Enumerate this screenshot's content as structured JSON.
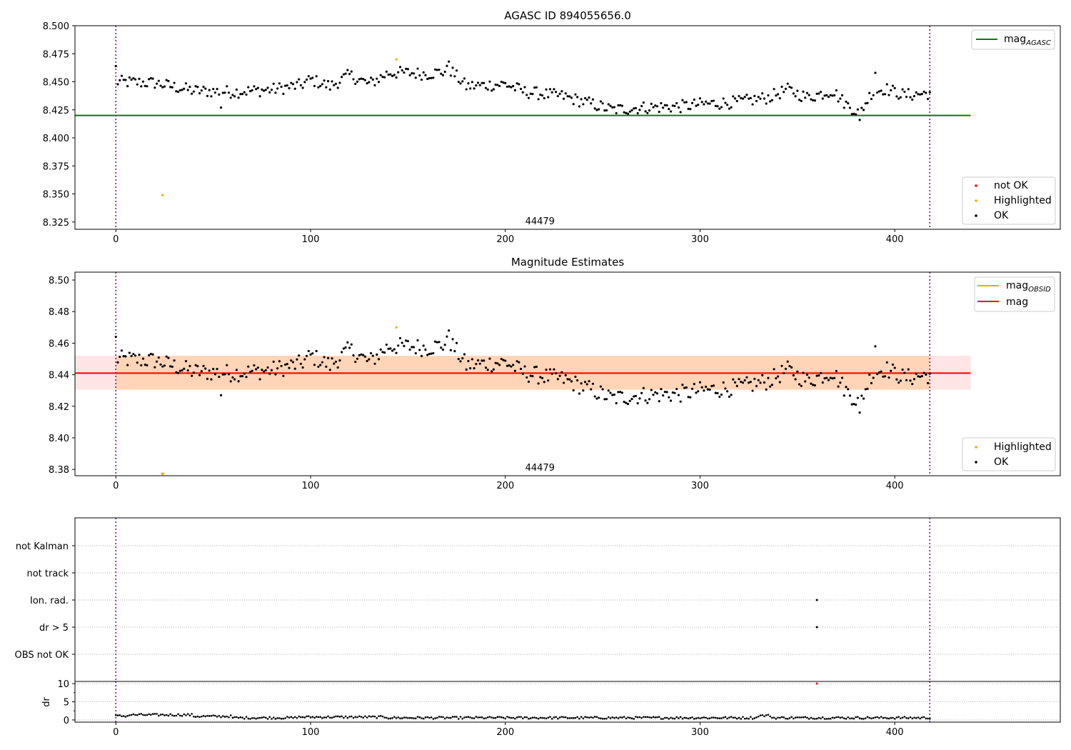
{
  "chart_data": [
    {
      "type": "scatter",
      "title": "AGASC ID 894055656.0",
      "xlabel": "",
      "ylabel": "",
      "xlim": [
        -21,
        485
      ],
      "ylim": [
        8.3185,
        8.5
      ],
      "xticks": [
        0,
        100,
        200,
        300,
        400
      ],
      "yticks": [
        8.325,
        8.35,
        8.375,
        8.4,
        8.425,
        8.45,
        8.475,
        8.5
      ],
      "ytick_labels": [
        "8.325",
        "8.350",
        "8.375",
        "8.400",
        "8.425",
        "8.450",
        "8.475",
        "8.500"
      ],
      "grid": false,
      "obsid_boundaries": [
        0,
        418
      ],
      "obsid_label": {
        "text": "44479",
        "x": 209,
        "y": 8.323
      },
      "hlines": [
        {
          "name": "mag_AGASC",
          "y": 8.42,
          "x": [
            -21,
            439
          ],
          "color": "#008000"
        }
      ],
      "series": [
        {
          "name": "not OK",
          "color": "#ff0000",
          "points": []
        },
        {
          "name": "Highlighted",
          "color": "#ffa500",
          "points": [
            [
              24,
              8.349
            ],
            [
              144,
              8.47
            ]
          ]
        },
        {
          "name": "OK",
          "color": "#000000",
          "points": "generated: ~419 points at x=0..418, y≈8.42–8.468 following the plotted trend"
        }
      ],
      "legend_lines": {
        "position": "top-right",
        "main": "mag",
        "sub": "AGASC"
      },
      "legend_markers": {
        "position": "bottom-right",
        "entries": [
          "not OK",
          "Highlighted",
          "OK"
        ]
      }
    },
    {
      "type": "scatter",
      "title": "Magnitude Estimates",
      "xlabel": "",
      "ylabel": "",
      "xlim": [
        -21,
        485
      ],
      "ylim": [
        8.376,
        8.505
      ],
      "xticks": [
        0,
        100,
        200,
        300,
        400
      ],
      "yticks": [
        8.38,
        8.4,
        8.42,
        8.44,
        8.46,
        8.48,
        8.5
      ],
      "ytick_labels": [
        "8.38",
        "8.40",
        "8.42",
        "8.44",
        "8.46",
        "8.48",
        "8.50"
      ],
      "grid": false,
      "obsid_boundaries": [
        0,
        418
      ],
      "obsid_label": {
        "text": "44479",
        "x": 209,
        "y": 8.38
      },
      "hlines": [
        {
          "name": "mag_OBSID",
          "y": 8.441,
          "x": [
            0,
            418
          ],
          "color": "#ffa500"
        },
        {
          "name": "mag",
          "y": 8.441,
          "x": [
            -21,
            439
          ],
          "color": "#ff0000"
        }
      ],
      "bands": [
        {
          "y": [
            8.4305,
            8.452
          ],
          "x": [
            0,
            418
          ],
          "color": "#ffa500",
          "opacity": 0.2
        },
        {
          "y": [
            8.4305,
            8.452
          ],
          "x": [
            -21,
            439
          ],
          "color": "#ff0000",
          "opacity": 0.1
        }
      ],
      "series": [
        {
          "name": "Highlighted",
          "color": "#ffa500",
          "points": [
            [
              24,
              8.377
            ],
            [
              144,
              8.47
            ]
          ]
        },
        {
          "name": "OK",
          "color": "#000000",
          "points": "same as panel 1"
        }
      ],
      "legend_lines": {
        "position": "top-right",
        "entries": [
          {
            "main": "mag",
            "sub": "OBSID",
            "color": "#ffa500"
          },
          {
            "main": "mag",
            "sub": "",
            "color": "#ff0000"
          }
        ]
      },
      "legend_markers": {
        "position": "bottom-right",
        "entries": [
          "Highlighted",
          "OK"
        ]
      }
    },
    {
      "type": "scatter",
      "title": "",
      "xlim": [
        -21,
        485
      ],
      "categories": [
        "not Kalman",
        "not track",
        "Ion. rad.",
        "dr > 5",
        "OBS not OK"
      ],
      "grid": "dotted horizontal",
      "obsid_boundaries": [
        0,
        418
      ],
      "flag_points": [
        {
          "category": "Ion. rad.",
          "x": 360
        },
        {
          "category": "dr > 5",
          "x": 360
        }
      ]
    },
    {
      "type": "scatter",
      "title": "",
      "xlabel": "",
      "ylabel": "dr",
      "xlim": [
        -21,
        485
      ],
      "ylim": [
        -0.6,
        10.6
      ],
      "xticks": [
        0,
        100,
        200,
        300,
        400
      ],
      "yticks": [
        0,
        5,
        10
      ],
      "grid": "dotted horizontal",
      "obsid_boundaries": [
        0,
        418
      ],
      "series": [
        {
          "name": "dr",
          "color": "#000000",
          "points": "generated: ~419 points at x=0..418, y≈0.2–1.8"
        },
        {
          "name": "dr outlier",
          "color": "#ff0000",
          "points": [
            [
              360,
              10.0
            ]
          ]
        }
      ]
    }
  ]
}
